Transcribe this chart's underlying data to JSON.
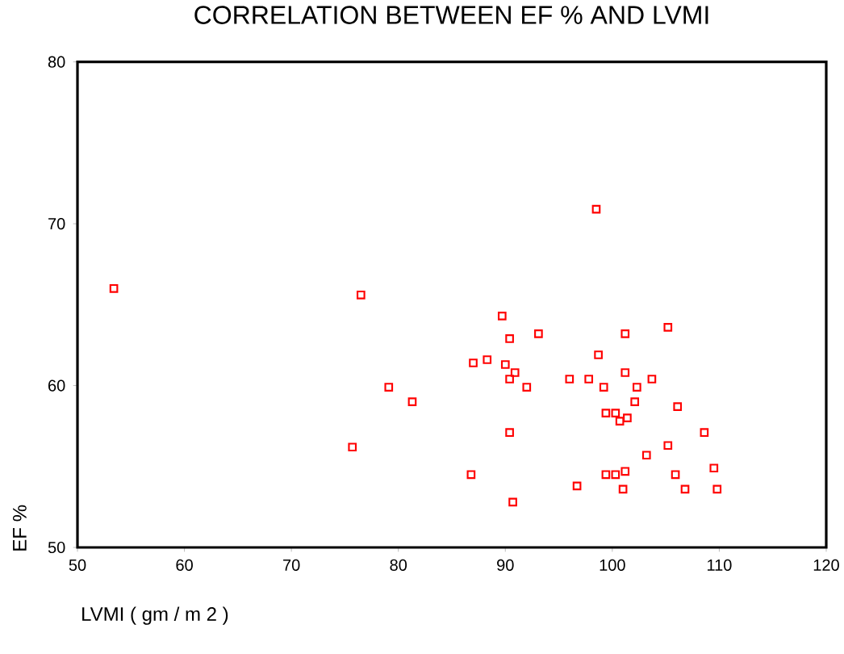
{
  "chart_data": {
    "type": "scatter",
    "title": "CORRELATION BETWEEN EF % AND LVMI",
    "xlabel": "LVMI ( gm / m 2 )",
    "ylabel": "EF %",
    "xlim": [
      50,
      120
    ],
    "xticks": [
      50,
      60,
      70,
      80,
      90,
      100,
      110,
      120
    ],
    "ylim": [
      50,
      80
    ],
    "yticks": [
      50,
      60,
      70,
      80
    ],
    "marker": "square",
    "series": [
      {
        "color": "#ff0000",
        "x": [
          53.4,
          76.5,
          79.1,
          81.3,
          75.7,
          86.8,
          87.0,
          88.3,
          89.7,
          90.0,
          90.4,
          90.4,
          90.4,
          90.7,
          90.9,
          98.5,
          93.1,
          92.0,
          101.2,
          105.2,
          98.7,
          101.2,
          96.0,
          97.8,
          99.2,
          102.3,
          103.7,
          102.1,
          106.1,
          99.4,
          100.3,
          100.7,
          101.4,
          108.6,
          105.2,
          103.2,
          99.4,
          100.3,
          101.2,
          105.9,
          109.5,
          96.7,
          101.0,
          106.8,
          109.8
        ],
        "values": [
          66.0,
          65.6,
          59.9,
          59.0,
          56.2,
          54.5,
          61.4,
          61.6,
          64.3,
          61.3,
          62.9,
          60.4,
          57.1,
          52.8,
          60.8,
          70.9,
          63.2,
          59.9,
          63.2,
          63.6,
          61.9,
          60.8,
          60.4,
          60.4,
          59.9,
          59.9,
          60.4,
          59.0,
          58.7,
          58.3,
          58.3,
          57.8,
          58.0,
          57.1,
          56.3,
          55.7,
          54.5,
          54.5,
          54.7,
          54.5,
          54.9,
          53.8,
          53.6,
          53.6,
          53.6
        ]
      }
    ]
  }
}
